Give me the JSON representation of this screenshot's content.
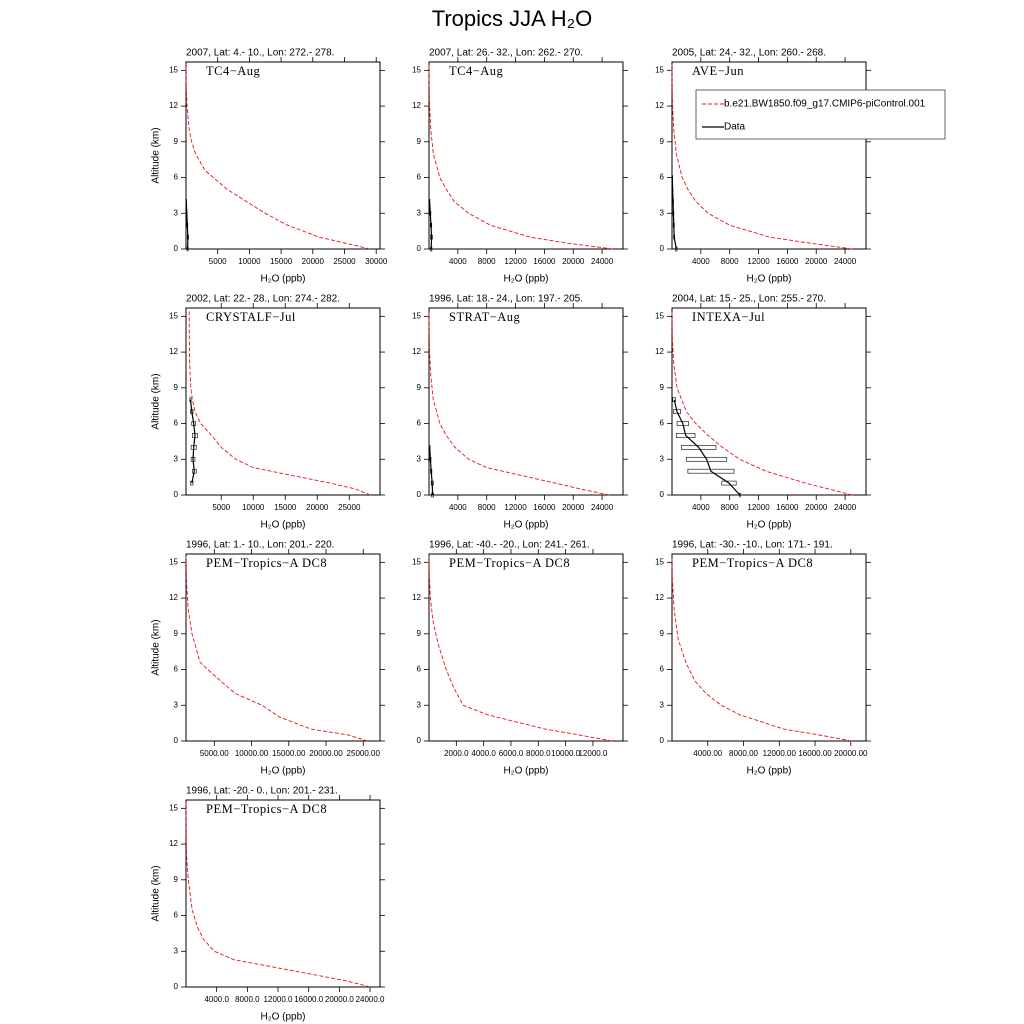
{
  "title": "Tropics JJA H₂O",
  "chart_data": [
    {
      "type": "line",
      "title": "2007, Lat: 4.- 10., Lon: 272.- 278.",
      "annotation": "TC4−Aug",
      "xlabel": "H₂O (ppb)",
      "ylabel": "Altitude (km)",
      "xlim": [
        0,
        30600
      ],
      "xticks": [
        5000,
        10000,
        15000,
        20000,
        25000,
        30000
      ],
      "ylim": [
        0,
        15.7
      ],
      "yticks": [
        0,
        3,
        6,
        9,
        12,
        15
      ],
      "series": [
        {
          "color": "#e8141c",
          "style": "dashed",
          "y": [
            0,
            0.5,
            1,
            2,
            3,
            4,
            5,
            6.6,
            8,
            9,
            10,
            12,
            14,
            15.5
          ],
          "values": [
            29000,
            25000,
            21000,
            16000,
            12500,
            9500,
            6500,
            3000,
            1500,
            900,
            500,
            150,
            20,
            5
          ]
        },
        {
          "color": "#000000",
          "style": "solid",
          "y": [
            0,
            1,
            2,
            3,
            4
          ],
          "values": [
            250,
            300,
            200,
            120,
            40
          ],
          "errors": [
            80,
            100,
            80,
            60,
            30
          ]
        }
      ]
    },
    {
      "type": "line",
      "title": "2007, Lat: 26.- 32., Lon: 262.- 270.",
      "annotation": "TC4−Aug",
      "xlabel": "H₂O (ppb)",
      "xlim": [
        0,
        26900
      ],
      "xticks": [
        4000,
        8000,
        12000,
        16000,
        20000,
        24000
      ],
      "ylim": [
        0,
        15.7
      ],
      "yticks": [
        0,
        3,
        6,
        9,
        12,
        15
      ],
      "series": [
        {
          "color": "#e8141c",
          "style": "dashed",
          "y": [
            0,
            0.5,
            1,
            2,
            3,
            4,
            5,
            6,
            8,
            10,
            12,
            14,
            15.5
          ],
          "values": [
            25500,
            19000,
            14000,
            8500,
            5500,
            3500,
            2400,
            1500,
            600,
            250,
            80,
            20,
            5
          ]
        },
        {
          "color": "#000000",
          "style": "solid",
          "y": [
            0,
            1,
            2,
            3,
            4
          ],
          "values": [
            300,
            350,
            280,
            180,
            80
          ],
          "errors": [
            100,
            150,
            100,
            80,
            40
          ]
        }
      ]
    },
    {
      "type": "line",
      "title": "2005, Lat: 24.- 32., Lon: 260.- 268.",
      "annotation": "AVE−Jun",
      "xlabel": "H₂O (ppb)",
      "legend": "upper right",
      "xlim": [
        0,
        26900
      ],
      "xticks": [
        4000,
        8000,
        12000,
        16000,
        20000,
        24000
      ],
      "ylim": [
        0,
        15.7
      ],
      "yticks": [
        0,
        3,
        6,
        9,
        12,
        15
      ],
      "series": [
        {
          "name": "b.e21.BW1850.f09_g17.CMIP6-piControl.001",
          "color": "#e8141c",
          "style": "dashed",
          "y": [
            0,
            0.5,
            1,
            2,
            3,
            4,
            5,
            6,
            8,
            10,
            12,
            14,
            15.5
          ],
          "values": [
            25000,
            19000,
            13500,
            8000,
            5000,
            3300,
            2200,
            1400,
            600,
            250,
            80,
            20,
            5
          ]
        },
        {
          "name": "Data",
          "color": "#000000",
          "style": "solid",
          "y": [
            0,
            1,
            2,
            3,
            4,
            5,
            6
          ],
          "values": [
            600,
            300,
            250,
            200,
            150,
            80,
            40
          ],
          "errors": [
            100,
            80,
            80,
            60,
            50,
            30,
            20
          ]
        }
      ]
    },
    {
      "type": "line",
      "title": "2002, Lat: 22.- 28., Lon: 274.- 282.",
      "annotation": "CRYSTALF−Jul",
      "xlabel": "H₂O (ppb)",
      "ylabel": "Altitude (km)",
      "xlim": [
        -500,
        29800
      ],
      "xticks": [
        5000,
        10000,
        15000,
        20000,
        25000
      ],
      "ylim": [
        0,
        15.7
      ],
      "yticks": [
        0,
        3,
        6,
        9,
        12,
        15
      ],
      "series": [
        {
          "color": "#e8141c",
          "style": "dashed",
          "y": [
            0,
            0.5,
            1,
            2.3,
            3,
            4,
            5,
            6,
            7,
            8,
            9,
            11,
            13,
            15.5
          ],
          "values": [
            28300,
            26000,
            22000,
            10000,
            7300,
            5000,
            3500,
            1800,
            900,
            500,
            250,
            80,
            20,
            5
          ]
        },
        {
          "color": "#000000",
          "style": "solid",
          "y": [
            1,
            2,
            3,
            4,
            5,
            6,
            7,
            8
          ],
          "values": [
            400,
            800,
            600,
            700,
            900,
            700,
            400,
            200
          ],
          "errors": [
            200,
            300,
            300,
            400,
            400,
            300,
            200,
            100
          ]
        }
      ]
    },
    {
      "type": "line",
      "title": "1996, Lat: 18.- 24., Lon: 197.- 205.",
      "annotation": "STRAT−Aug",
      "xlabel": "H₂O (ppb)",
      "xlim": [
        0,
        26900
      ],
      "xticks": [
        4000,
        8000,
        12000,
        16000,
        20000,
        24000
      ],
      "ylim": [
        0,
        15.7
      ],
      "yticks": [
        0,
        3,
        6,
        9,
        12,
        15
      ],
      "series": [
        {
          "color": "#e8141c",
          "style": "dashed",
          "y": [
            0,
            0.5,
            1,
            2.3,
            3,
            4,
            5,
            6,
            8,
            10,
            12,
            14,
            15.5
          ],
          "values": [
            25000,
            21000,
            17500,
            8000,
            5500,
            3600,
            2400,
            1500,
            600,
            250,
            80,
            20,
            5
          ]
        },
        {
          "color": "#000000",
          "style": "solid",
          "y": [
            0,
            1,
            2,
            3,
            4
          ],
          "values": [
            500,
            450,
            300,
            200,
            100
          ],
          "errors": [
            150,
            150,
            100,
            80,
            50
          ]
        }
      ]
    },
    {
      "type": "line",
      "title": "2004, Lat: 15.- 25., Lon: 255.- 270.",
      "annotation": "INTEXA−Jul",
      "xlabel": "H₂O (ppb)",
      "xlim": [
        0,
        26900
      ],
      "xticks": [
        4000,
        8000,
        12000,
        16000,
        20000,
        24000
      ],
      "ylim": [
        0,
        15.7
      ],
      "yticks": [
        0,
        3,
        6,
        9,
        12,
        15
      ],
      "series": [
        {
          "color": "#e8141c",
          "style": "dashed",
          "y": [
            0,
            1,
            2,
            3,
            4,
            5,
            6,
            7,
            9,
            11,
            13,
            15.5
          ],
          "values": [
            25000,
            18500,
            13000,
            9400,
            7000,
            5000,
            3300,
            2000,
            700,
            250,
            50,
            5
          ]
        },
        {
          "color": "#000000",
          "style": "solid",
          "y": [
            0,
            1,
            2,
            3,
            4,
            5,
            6,
            7,
            8
          ],
          "values": [
            9400,
            7900,
            5400,
            4800,
            3700,
            1900,
            1500,
            700,
            300
          ],
          "errors": [
            0,
            1000,
            3200,
            2800,
            2400,
            1300,
            800,
            500,
            200
          ]
        }
      ]
    },
    {
      "type": "line",
      "title": "1996, Lat: 1.- 10., Lon: 201.- 220.",
      "annotation": "PEM−Tropics−A DC8",
      "xlabel": "H₂O (ppb)",
      "ylabel": "Altitude (km)",
      "xlim": [
        1200,
        27250
      ],
      "xticks": [
        {
          "value": 5000,
          "label": "5000.00"
        },
        {
          "value": 10000,
          "label": "10000.00"
        },
        {
          "value": 15000,
          "label": "15000.00"
        },
        {
          "value": 20000,
          "label": "20000.00"
        },
        {
          "value": 25000,
          "label": "25000.00"
        }
      ],
      "ylim": [
        0,
        15.7
      ],
      "yticks": [
        0,
        3,
        6,
        9,
        12,
        15
      ],
      "series": [
        {
          "color": "#e8141c",
          "style": "dashed",
          "y": [
            0,
            0.5,
            1,
            2,
            3,
            4,
            5.5,
            6.6,
            9,
            11,
            13,
            15.5
          ],
          "values": [
            25600,
            23000,
            18000,
            13800,
            11400,
            7800,
            5000,
            3100,
            2000,
            1500,
            1300,
            1200
          ]
        }
      ]
    },
    {
      "type": "line",
      "title": "1996, Lat: -40.- -20., Lon: 241.- 261.",
      "annotation": "PEM−Tropics−A DC8",
      "xlabel": "H₂O (ppb)",
      "xlim": [
        0,
        14200
      ],
      "xticks": [
        {
          "value": 2000,
          "label": "2000.0"
        },
        {
          "value": 4000,
          "label": "4000.0"
        },
        {
          "value": 6000,
          "label": "6000.0"
        },
        {
          "value": 8000,
          "label": "8000.0"
        },
        {
          "value": 10000,
          "label": "10000.0"
        },
        {
          "value": 12000,
          "label": "12000.0"
        }
      ],
      "ylim": [
        0,
        15.7
      ],
      "yticks": [
        0,
        3,
        6,
        9,
        12,
        15
      ],
      "series": [
        {
          "color": "#e8141c",
          "style": "dashed",
          "y": [
            0,
            0.5,
            1,
            2.2,
            3,
            4.5,
            6,
            8,
            10,
            12,
            14,
            15.5
          ],
          "values": [
            13400,
            11000,
            8500,
            4300,
            2500,
            1800,
            1260,
            700,
            300,
            100,
            20,
            5
          ]
        }
      ]
    },
    {
      "type": "line",
      "title": "1996, Lat: -30.- -10., Lon: 171.- 191.",
      "annotation": "PEM−Tropics−A DC8",
      "xlabel": "H₂O (ppb)",
      "xlim": [
        0,
        21700
      ],
      "xticks": [
        {
          "value": 4000,
          "label": "4000.00"
        },
        {
          "value": 8000,
          "label": "8000.00"
        },
        {
          "value": 12000,
          "label": "12000.00"
        },
        {
          "value": 16000,
          "label": "16000.00"
        },
        {
          "value": 20000,
          "label": "20000.00"
        }
      ],
      "ylim": [
        0,
        15.7
      ],
      "yticks": [
        0,
        3,
        6,
        9,
        12,
        15
      ],
      "series": [
        {
          "color": "#e8141c",
          "style": "dashed",
          "y": [
            0,
            0.5,
            1,
            2.2,
            3,
            4,
            5,
            6.5,
            8.5,
            11,
            13.5,
            15.5
          ],
          "values": [
            20100,
            16500,
            12500,
            7600,
            5500,
            3800,
            2600,
            1600,
            700,
            250,
            50,
            5
          ]
        }
      ]
    },
    {
      "type": "line",
      "title": "1996, Lat: -20.- 0., Lon: 201.- 231.",
      "annotation": "PEM−Tropics−A DC8",
      "xlabel": "H₂O (ppb)",
      "ylabel": "Altitude (km)",
      "xlim": [
        0,
        25300
      ],
      "xticks": [
        {
          "value": 4000,
          "label": "4000.0"
        },
        {
          "value": 8000,
          "label": "8000.0"
        },
        {
          "value": 12000,
          "label": "12000.0"
        },
        {
          "value": 16000,
          "label": "16000.0"
        },
        {
          "value": 20000,
          "label": "20000.0"
        },
        {
          "value": 24000,
          "label": "24000.0"
        }
      ],
      "ylim": [
        0,
        15.7
      ],
      "yticks": [
        0,
        3,
        6,
        9,
        12,
        15
      ],
      "series": [
        {
          "color": "#e8141c",
          "style": "dashed",
          "y": [
            0,
            0.5,
            1,
            2.3,
            3,
            4,
            5,
            6.5,
            9,
            11,
            13,
            15.5
          ],
          "values": [
            24000,
            21000,
            17000,
            6200,
            3700,
            2300,
            1500,
            800,
            300,
            80,
            20,
            5
          ]
        }
      ]
    }
  ]
}
